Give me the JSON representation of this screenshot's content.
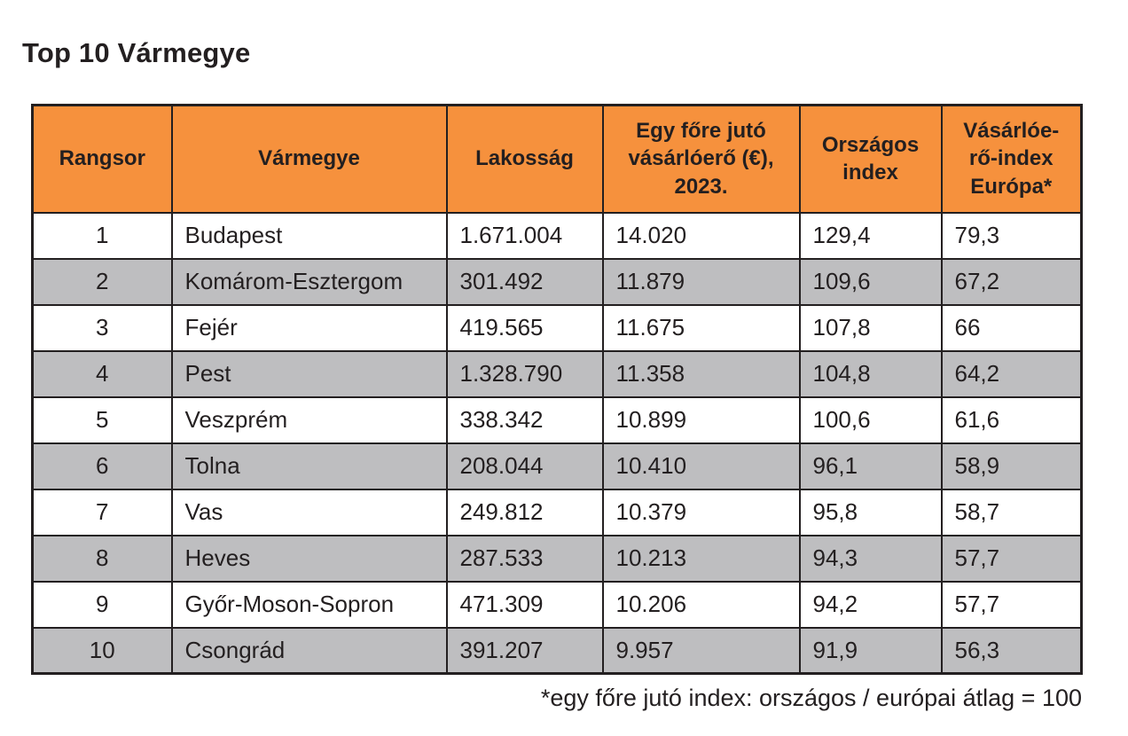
{
  "page_title": "Top 10 Vármegye",
  "chart_data": {
    "type": "table",
    "title": "Top 10 Vármegye",
    "columns": [
      "Rangsor",
      "Vármegye",
      "Lakosság",
      "Egy főre jutó vásárlóerő (€), 2023.",
      "Országos index",
      "Vásárlóe-rő-index Európa*"
    ],
    "rows": [
      [
        "1",
        "Budapest",
        "1.671.004",
        "14.020",
        "129,4",
        "79,3"
      ],
      [
        "2",
        "Komárom-Esztergom",
        "301.492",
        "11.879",
        "109,6",
        "67,2"
      ],
      [
        "3",
        "Fejér",
        "419.565",
        "11.675",
        "107,8",
        "66"
      ],
      [
        "4",
        "Pest",
        "1.328.790",
        "11.358",
        "104,8",
        "64,2"
      ],
      [
        "5",
        "Veszprém",
        "338.342",
        "10.899",
        "100,6",
        "61,6"
      ],
      [
        "6",
        "Tolna",
        "208.044",
        "10.410",
        "96,1",
        "58,9"
      ],
      [
        "7",
        "Vas",
        "249.812",
        "10.379",
        "95,8",
        "58,7"
      ],
      [
        "8",
        "Heves",
        "287.533",
        "10.213",
        "94,3",
        "57,7"
      ],
      [
        "9",
        "Győr-Moson-Sopron",
        "471.309",
        "10.206",
        "94,2",
        "57,7"
      ],
      [
        "10",
        "Csongrád",
        "391.207",
        "9.957",
        "91,9",
        "56,3"
      ]
    ],
    "footnote": "*egy főre jutó index: országos / európai átlag = 100",
    "layout_hints": {
      "striped_rows": "even rows gray",
      "header_style": "orange background, bold, centered"
    }
  },
  "colors": {
    "header_bg": "#F6913D",
    "row_alt_bg": "#BEBEC0",
    "border": "#231F20",
    "text": "#231F20",
    "background": "#FFFFFF"
  }
}
